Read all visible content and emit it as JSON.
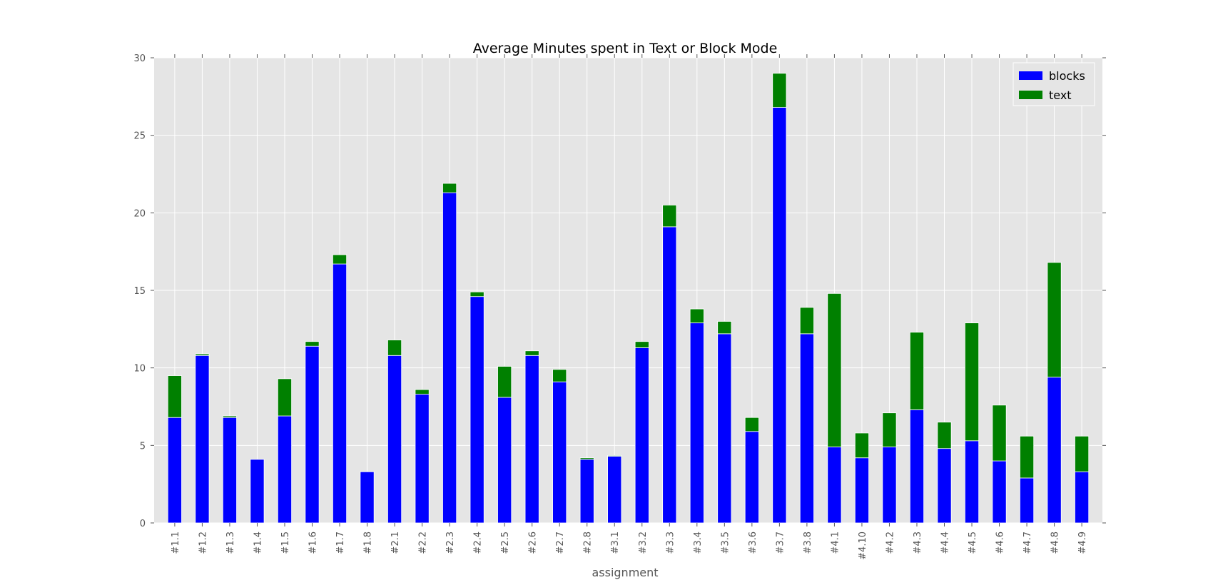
{
  "chart_data": {
    "type": "bar",
    "stacked": true,
    "title": "Average Minutes spent in Text or Block Mode",
    "xlabel": "assignment",
    "ylabel": "",
    "ylim": [
      0,
      30
    ],
    "yticks": [
      0,
      5,
      10,
      15,
      20,
      25,
      30
    ],
    "grid": true,
    "legend_position": "top-right",
    "categories": [
      "#1.1",
      "#1.2",
      "#1.3",
      "#1.4",
      "#1.5",
      "#1.6",
      "#1.7",
      "#1.8",
      "#2.1",
      "#2.2",
      "#2.3",
      "#2.4",
      "#2.5",
      "#2.6",
      "#2.7",
      "#2.8",
      "#3.1",
      "#3.2",
      "#3.3",
      "#3.4",
      "#3.5",
      "#3.6",
      "#3.7",
      "#3.8",
      "#4.1",
      "#4.10",
      "#4.2",
      "#4.3",
      "#4.4",
      "#4.5",
      "#4.6",
      "#4.7",
      "#4.8",
      "#4.9"
    ],
    "series": [
      {
        "name": "blocks",
        "color": "#0000ff",
        "values": [
          6.8,
          10.8,
          6.8,
          4.1,
          6.9,
          11.4,
          16.7,
          3.3,
          10.8,
          8.3,
          21.3,
          14.6,
          8.1,
          10.8,
          9.1,
          4.1,
          4.3,
          11.3,
          19.1,
          12.9,
          12.2,
          5.9,
          26.8,
          12.2,
          4.9,
          4.2,
          4.9,
          7.3,
          4.8,
          5.3,
          4.0,
          2.9,
          9.4,
          3.3
        ]
      },
      {
        "name": "text",
        "color": "#008000",
        "values": [
          2.7,
          0.1,
          0.1,
          0.0,
          2.4,
          0.3,
          0.6,
          0.0,
          1.0,
          0.3,
          0.6,
          0.3,
          2.0,
          0.3,
          0.8,
          0.1,
          0.05,
          0.4,
          1.4,
          0.9,
          0.8,
          0.9,
          2.2,
          1.7,
          9.9,
          1.6,
          2.2,
          5.0,
          1.7,
          7.6,
          3.6,
          2.7,
          7.4,
          2.3
        ]
      }
    ]
  }
}
